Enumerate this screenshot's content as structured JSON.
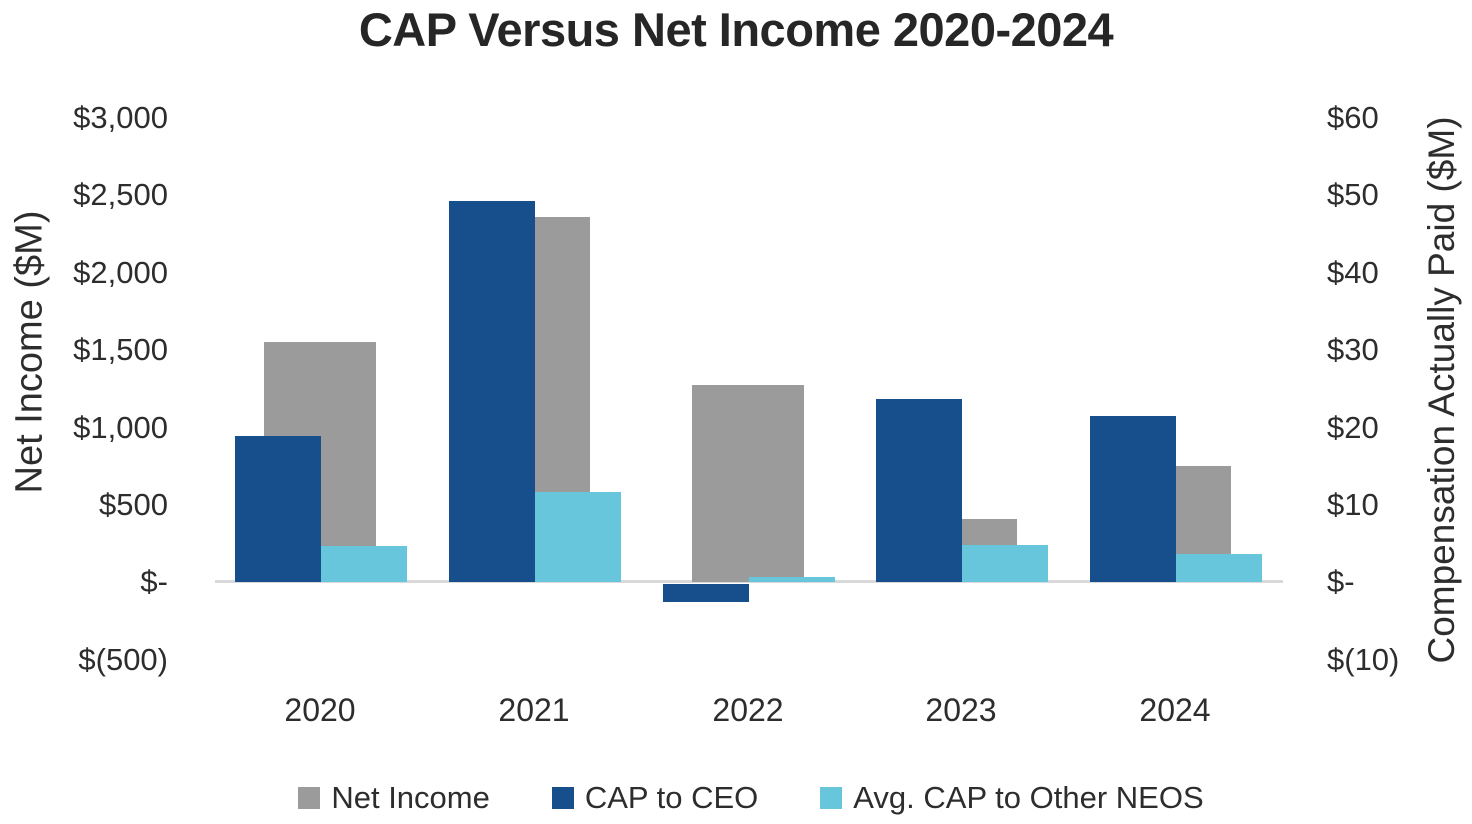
{
  "title": "CAP Versus Net Income 2020-2024",
  "chart_data": {
    "type": "bar",
    "categories": [
      "2020",
      "2021",
      "2022",
      "2023",
      "2024"
    ],
    "series": [
      {
        "name": "Net Income",
        "axis": "left",
        "color": "#9b9b9b",
        "values": [
          1550,
          2360,
          1270,
          410,
          750
        ]
      },
      {
        "name": "CAP to CEO",
        "axis": "right",
        "color": "#174e8c",
        "values": [
          18.8,
          49.2,
          -2.3,
          23.6,
          21.4
        ]
      },
      {
        "name": "Avg. CAP to Other NEOS",
        "axis": "right",
        "color": "#67c5dc",
        "values": [
          4.6,
          11.6,
          0.6,
          4.8,
          3.6
        ]
      }
    ],
    "left_axis": {
      "title": "Net Income ($M)",
      "ticks": [
        "$3,000",
        "$2,500",
        "$2,000",
        "$1,500",
        "$1,000",
        "$500",
        "$-",
        "$(500)"
      ],
      "range": [
        -500,
        3000
      ]
    },
    "right_axis": {
      "title": "Compensation Actually Paid ($M)",
      "ticks": [
        "$60",
        "$50",
        "$40",
        "$30",
        "$20",
        "$10",
        "$-",
        "$(10)"
      ],
      "range": [
        -10,
        60
      ]
    },
    "legend_position": "bottom",
    "grid": false
  }
}
